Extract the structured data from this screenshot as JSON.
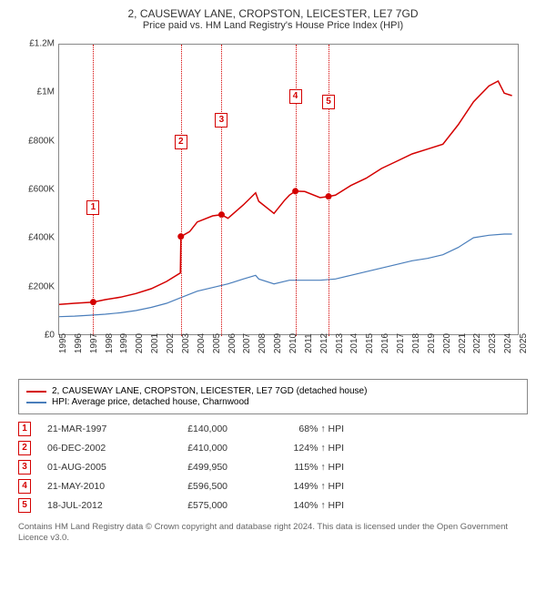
{
  "title": "2, CAUSEWAY LANE, CROPSTON, LEICESTER, LE7 7GD",
  "subtitle": "Price paid vs. HM Land Registry's House Price Index (HPI)",
  "chart": {
    "type": "line",
    "xlim": [
      1995,
      2025
    ],
    "ylim": [
      0,
      1200000
    ],
    "ytick_step": 200000,
    "yticks": [
      "£0",
      "£200K",
      "£400K",
      "£600K",
      "£800K",
      "£1M",
      "£1.2M"
    ],
    "xticks": [
      1995,
      1996,
      1997,
      1998,
      1999,
      2000,
      2001,
      2002,
      2003,
      2004,
      2005,
      2006,
      2007,
      2008,
      2009,
      2010,
      2011,
      2012,
      2013,
      2014,
      2015,
      2016,
      2017,
      2018,
      2019,
      2020,
      2021,
      2022,
      2023,
      2024,
      2025
    ],
    "background_color": "#ffffff",
    "grid_color": "#eeeeee",
    "axis_color": "#888888",
    "label_fontsize": 10,
    "title_fontsize": 12,
    "series": [
      {
        "name": "property",
        "label": "2, CAUSEWAY LANE, CROPSTON, LEICESTER, LE7 7GD (detached house)",
        "color": "#d40000",
        "line_width": 1.5,
        "points": [
          [
            1995,
            130000
          ],
          [
            1996,
            135000
          ],
          [
            1997.22,
            140000
          ],
          [
            1998,
            150000
          ],
          [
            1999,
            160000
          ],
          [
            2000,
            175000
          ],
          [
            2001,
            195000
          ],
          [
            2002,
            225000
          ],
          [
            2002.9,
            260000
          ],
          [
            2002.93,
            410000
          ],
          [
            2003.5,
            430000
          ],
          [
            2004,
            470000
          ],
          [
            2005,
            495000
          ],
          [
            2005.58,
            499950
          ],
          [
            2006,
            485000
          ],
          [
            2007,
            540000
          ],
          [
            2007.8,
            590000
          ],
          [
            2008,
            555000
          ],
          [
            2009,
            505000
          ],
          [
            2009.7,
            560000
          ],
          [
            2010,
            580000
          ],
          [
            2010.39,
            596500
          ],
          [
            2011,
            595000
          ],
          [
            2012,
            570000
          ],
          [
            2012.55,
            575000
          ],
          [
            2013,
            580000
          ],
          [
            2014,
            620000
          ],
          [
            2015,
            650000
          ],
          [
            2016,
            690000
          ],
          [
            2017,
            720000
          ],
          [
            2018,
            750000
          ],
          [
            2019,
            770000
          ],
          [
            2020,
            790000
          ],
          [
            2021,
            870000
          ],
          [
            2022,
            965000
          ],
          [
            2023,
            1030000
          ],
          [
            2023.6,
            1050000
          ],
          [
            2024,
            1000000
          ],
          [
            2024.5,
            990000
          ]
        ]
      },
      {
        "name": "hpi",
        "label": "HPI: Average price, detached house, Charnwood",
        "color": "#4a7ebb",
        "line_width": 1.2,
        "points": [
          [
            1995,
            80000
          ],
          [
            1996,
            82000
          ],
          [
            1997,
            86000
          ],
          [
            1998,
            90000
          ],
          [
            1999,
            96000
          ],
          [
            2000,
            105000
          ],
          [
            2001,
            118000
          ],
          [
            2002,
            135000
          ],
          [
            2003,
            160000
          ],
          [
            2004,
            185000
          ],
          [
            2005,
            200000
          ],
          [
            2006,
            215000
          ],
          [
            2007,
            235000
          ],
          [
            2007.8,
            250000
          ],
          [
            2008,
            235000
          ],
          [
            2009,
            215000
          ],
          [
            2010,
            230000
          ],
          [
            2011,
            230000
          ],
          [
            2012,
            230000
          ],
          [
            2013,
            235000
          ],
          [
            2014,
            250000
          ],
          [
            2015,
            265000
          ],
          [
            2016,
            280000
          ],
          [
            2017,
            295000
          ],
          [
            2018,
            310000
          ],
          [
            2019,
            320000
          ],
          [
            2020,
            335000
          ],
          [
            2021,
            365000
          ],
          [
            2022,
            405000
          ],
          [
            2023,
            415000
          ],
          [
            2024,
            420000
          ],
          [
            2024.5,
            420000
          ]
        ]
      }
    ],
    "transaction_markers": [
      {
        "n": "1",
        "x": 1997.22,
        "y": 140000,
        "color": "#d40000"
      },
      {
        "n": "2",
        "x": 2002.93,
        "y": 410000,
        "color": "#d40000"
      },
      {
        "n": "3",
        "x": 2005.58,
        "y": 499950,
        "color": "#d40000"
      },
      {
        "n": "4",
        "x": 2010.39,
        "y": 596500,
        "color": "#d40000"
      },
      {
        "n": "5",
        "x": 2012.55,
        "y": 575000,
        "color": "#d40000"
      }
    ],
    "marker_box_y_offset": -112
  },
  "legend": {
    "items": [
      {
        "color": "#d40000",
        "label": "2, CAUSEWAY LANE, CROPSTON, LEICESTER, LE7 7GD (detached house)"
      },
      {
        "color": "#4a7ebb",
        "label": "HPI: Average price, detached house, Charnwood"
      }
    ]
  },
  "transactions": {
    "marker_color": "#d40000",
    "rows": [
      {
        "n": "1",
        "date": "21-MAR-1997",
        "price": "£140,000",
        "pct": "68% ↑ HPI"
      },
      {
        "n": "2",
        "date": "06-DEC-2002",
        "price": "£410,000",
        "pct": "124% ↑ HPI"
      },
      {
        "n": "3",
        "date": "01-AUG-2005",
        "price": "£499,950",
        "pct": "115% ↑ HPI"
      },
      {
        "n": "4",
        "date": "21-MAY-2010",
        "price": "£596,500",
        "pct": "149% ↑ HPI"
      },
      {
        "n": "5",
        "date": "18-JUL-2012",
        "price": "£575,000",
        "pct": "140% ↑ HPI"
      }
    ]
  },
  "footnote": "Contains HM Land Registry data © Crown copyright and database right 2024. This data is licensed under the Open Government Licence v3.0."
}
